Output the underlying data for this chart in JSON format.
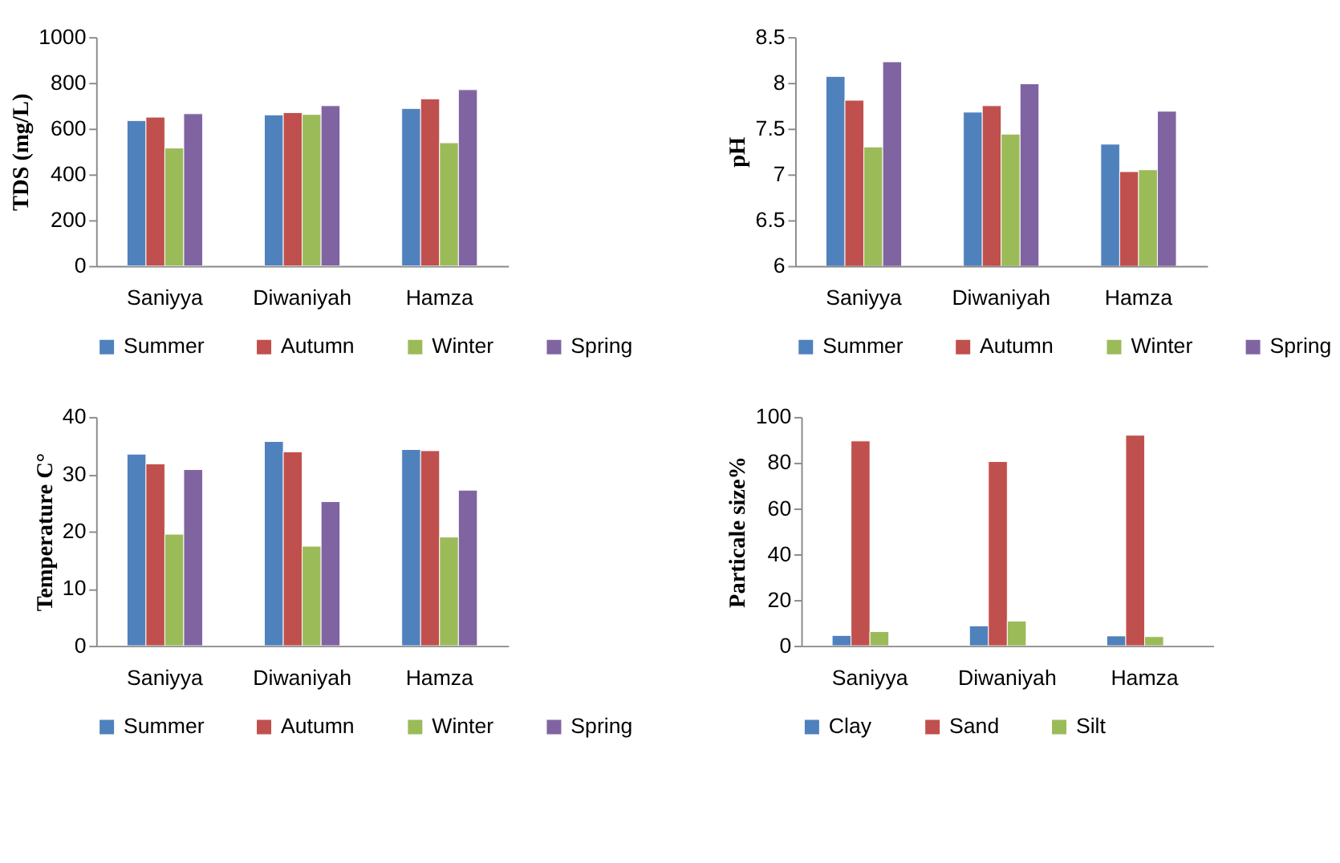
{
  "chart_data": [
    {
      "type": "bar",
      "ylabel": "TDS (mg/L)",
      "categories": [
        "Saniyya",
        "Diwaniyah",
        "Hamza"
      ],
      "ylim": [
        0,
        1000
      ],
      "yticks": [
        0,
        200,
        400,
        600,
        800,
        1000
      ],
      "grid": false,
      "legend": "bottom",
      "series": [
        {
          "name": "Summer",
          "color": "#4f81bd",
          "values": [
            635,
            660,
            688
          ]
        },
        {
          "name": "Autumn",
          "color": "#c0504d",
          "values": [
            650,
            670,
            730
          ]
        },
        {
          "name": "Winter",
          "color": "#9bbb59",
          "values": [
            515,
            662,
            538
          ]
        },
        {
          "name": "Spring",
          "color": "#8064a2",
          "values": [
            665,
            700,
            770
          ]
        }
      ]
    },
    {
      "type": "bar",
      "ylabel": "pH",
      "categories": [
        "Saniyya",
        "Diwaniyah",
        "Hamza"
      ],
      "ylim": [
        6,
        8.5
      ],
      "yticks": [
        6,
        6.5,
        7,
        7.5,
        8,
        8.5
      ],
      "grid": false,
      "legend": "bottom",
      "series": [
        {
          "name": "Summer",
          "color": "#4f81bd",
          "values": [
            8.07,
            7.68,
            7.33
          ]
        },
        {
          "name": "Autumn",
          "color": "#c0504d",
          "values": [
            7.81,
            7.75,
            7.03
          ]
        },
        {
          "name": "Winter",
          "color": "#9bbb59",
          "values": [
            7.3,
            7.44,
            7.05
          ]
        },
        {
          "name": "Spring",
          "color": "#8064a2",
          "values": [
            8.23,
            7.99,
            7.69
          ]
        }
      ]
    },
    {
      "type": "bar",
      "ylabel": "Temperature C°",
      "categories": [
        "Saniyya",
        "Diwaniyah",
        "Hamza"
      ],
      "ylim": [
        0,
        40
      ],
      "yticks": [
        0,
        10,
        20,
        30,
        40
      ],
      "grid": false,
      "legend": "bottom",
      "series": [
        {
          "name": "Summer",
          "color": "#4f81bd",
          "values": [
            33.5,
            35.7,
            34.3
          ]
        },
        {
          "name": "Autumn",
          "color": "#c0504d",
          "values": [
            31.8,
            33.9,
            34.1
          ]
        },
        {
          "name": "Winter",
          "color": "#9bbb59",
          "values": [
            19.5,
            17.4,
            19.0
          ]
        },
        {
          "name": "Spring",
          "color": "#8064a2",
          "values": [
            30.8,
            25.2,
            27.2
          ]
        }
      ]
    },
    {
      "type": "bar",
      "ylabel": "Particale size%",
      "categories": [
        "Saniyya",
        "Diwaniyah",
        "Hamza"
      ],
      "ylim": [
        0,
        100
      ],
      "yticks": [
        0,
        20,
        40,
        60,
        80,
        100
      ],
      "grid": false,
      "legend": "bottom",
      "series": [
        {
          "name": "Clay",
          "color": "#4f81bd",
          "values": [
            4.5,
            8.7,
            4.3
          ]
        },
        {
          "name": "Sand",
          "color": "#c0504d",
          "values": [
            89.5,
            80.5,
            92
          ]
        },
        {
          "name": "Silt",
          "color": "#9bbb59",
          "values": [
            6.2,
            10.8,
            4.0
          ]
        }
      ]
    }
  ]
}
